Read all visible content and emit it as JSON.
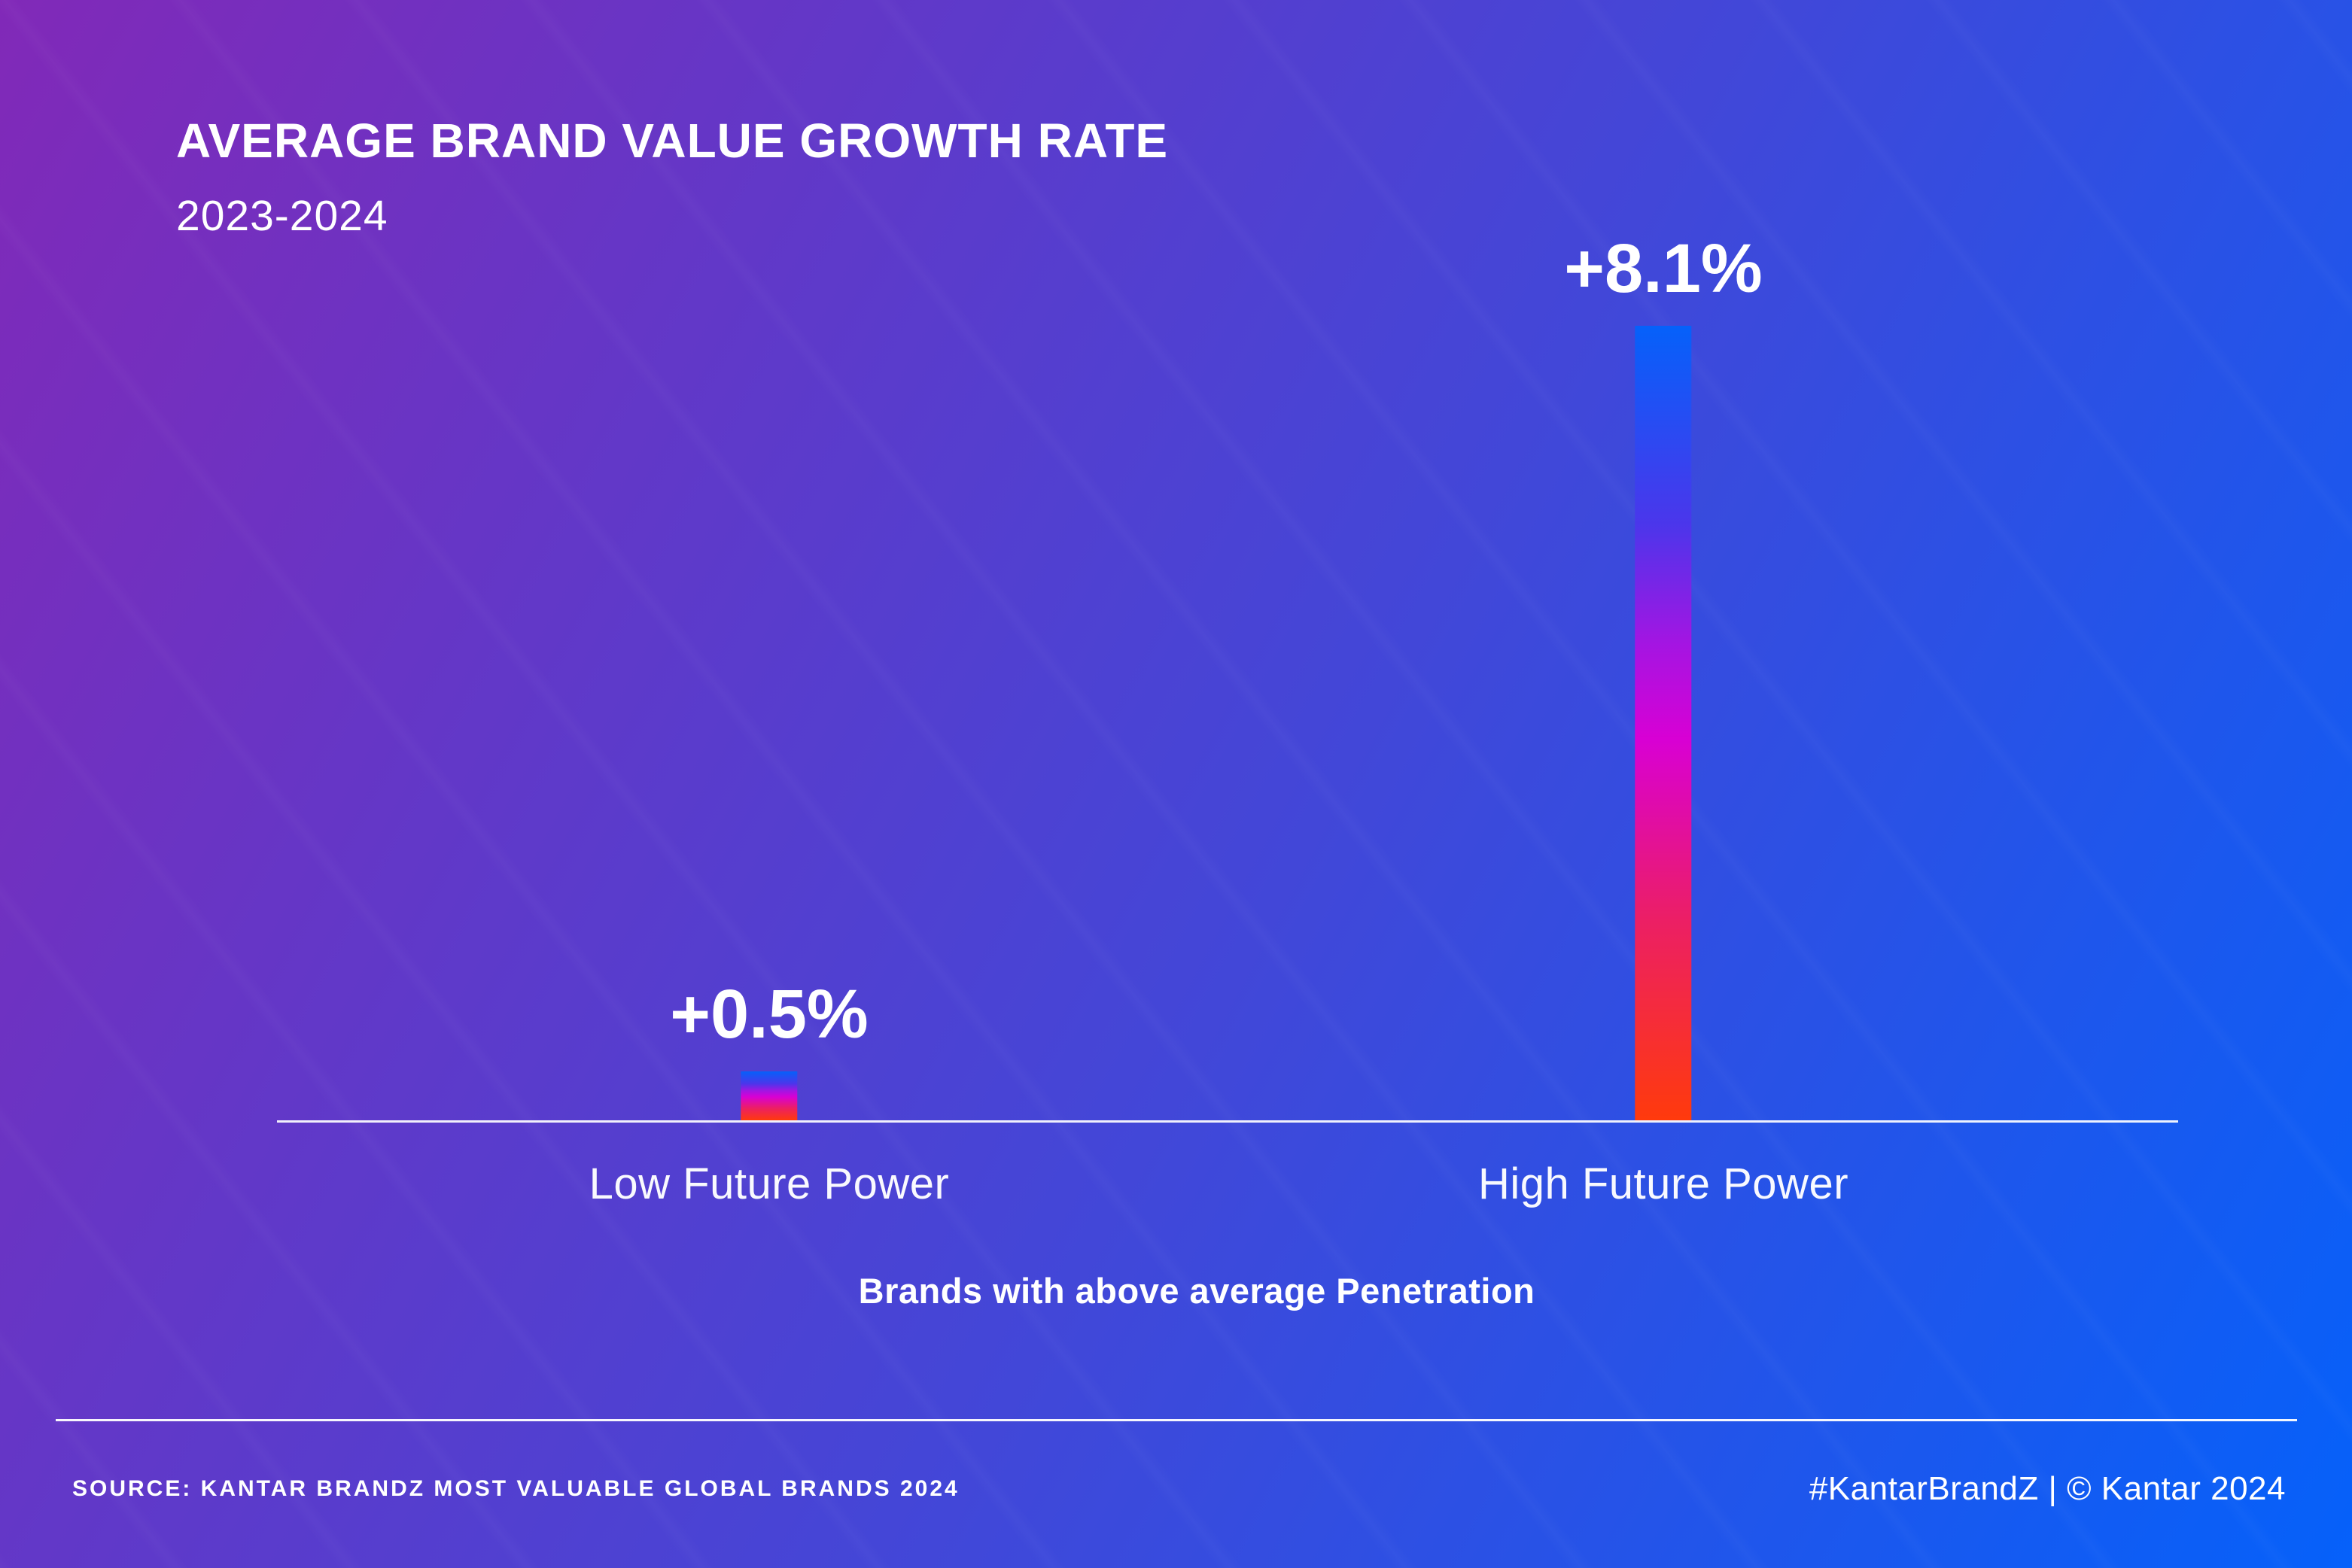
{
  "header": {
    "title": "AVERAGE BRAND VALUE GROWTH RATE",
    "subtitle": "2023-2024"
  },
  "chart_data": {
    "type": "bar",
    "title": "AVERAGE BRAND VALUE GROWTH RATE",
    "subtitle": "2023-2024",
    "categories": [
      "Low Future Power",
      "High Future Power"
    ],
    "values": [
      0.5,
      8.1
    ],
    "value_labels": [
      "+0.5%",
      "+8.1%"
    ],
    "xlabel": "Brands with above average Penetration",
    "ylabel": "",
    "ylim": [
      0,
      8.1
    ],
    "grid": false,
    "legend": false,
    "bar_gradient_stops": [
      "#0561FA 0%",
      "#4B36EB 25%",
      "#A415E2 40%",
      "#D800D4 52%",
      "#EC1F64 75%",
      "#FF3A0C 100%"
    ]
  },
  "footer": {
    "source": "SOURCE: KANTAR BRANDZ MOST VALUABLE GLOBAL BRANDS 2024",
    "branding": "#KantarBrandZ | © Kantar 2024"
  },
  "colors": {
    "background_start": "#8129B8",
    "background_end": "#0561FA",
    "axis_line": "#EDEAF4",
    "text": "#FFFFFF"
  }
}
